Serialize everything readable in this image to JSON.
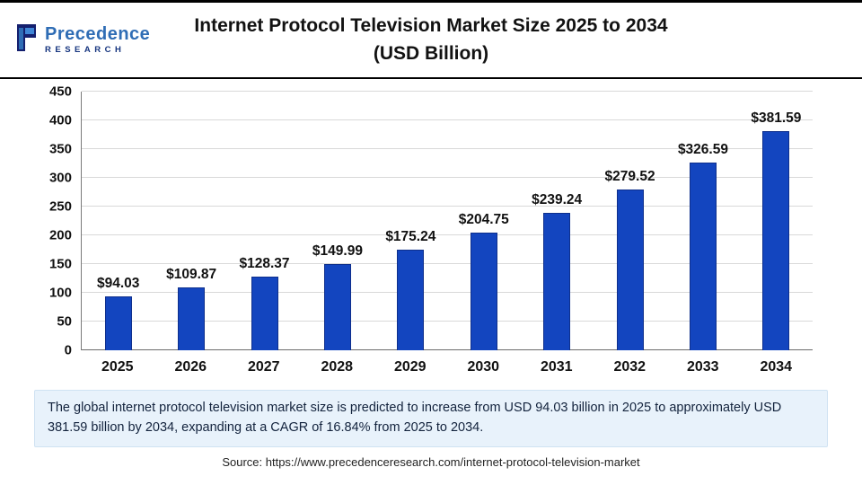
{
  "header": {
    "logo": {
      "brand_top": "Precedence",
      "brand_bottom": "RESEARCH"
    },
    "title_line1": "Internet Protocol Television Market Size 2025 to 2034",
    "title_line2": "(USD Billion)"
  },
  "chart_data": {
    "type": "bar",
    "title": "Internet Protocol Television Market Size 2025 to 2034 (USD Billion)",
    "categories": [
      "2025",
      "2026",
      "2027",
      "2028",
      "2029",
      "2030",
      "2031",
      "2032",
      "2033",
      "2034"
    ],
    "values": [
      94.03,
      109.87,
      128.37,
      149.99,
      175.24,
      204.75,
      239.24,
      279.52,
      326.59,
      381.59
    ],
    "value_labels": [
      "$94.03",
      "$109.87",
      "$128.37",
      "$149.99",
      "$175.24",
      "$204.75",
      "$239.24",
      "$279.52",
      "$326.59",
      "$381.59"
    ],
    "xlabel": "",
    "ylabel": "",
    "ylim": [
      0,
      450
    ],
    "ytick_step": 50,
    "ytick_labels": [
      "0",
      "50",
      "100",
      "150",
      "200",
      "250",
      "300",
      "350",
      "400",
      "450"
    ],
    "bar_color": "#1345bf",
    "grid": "horizontal",
    "legend_position": "none"
  },
  "footer": {
    "note": "The global internet protocol television market size is predicted to increase from USD 94.03 billion in 2025 to approximately USD 381.59 billion by 2034, expanding at a CAGR of 16.84% from 2025 to 2034.",
    "source": "Source: https://www.precedenceresearch.com/internet-protocol-television-market"
  }
}
